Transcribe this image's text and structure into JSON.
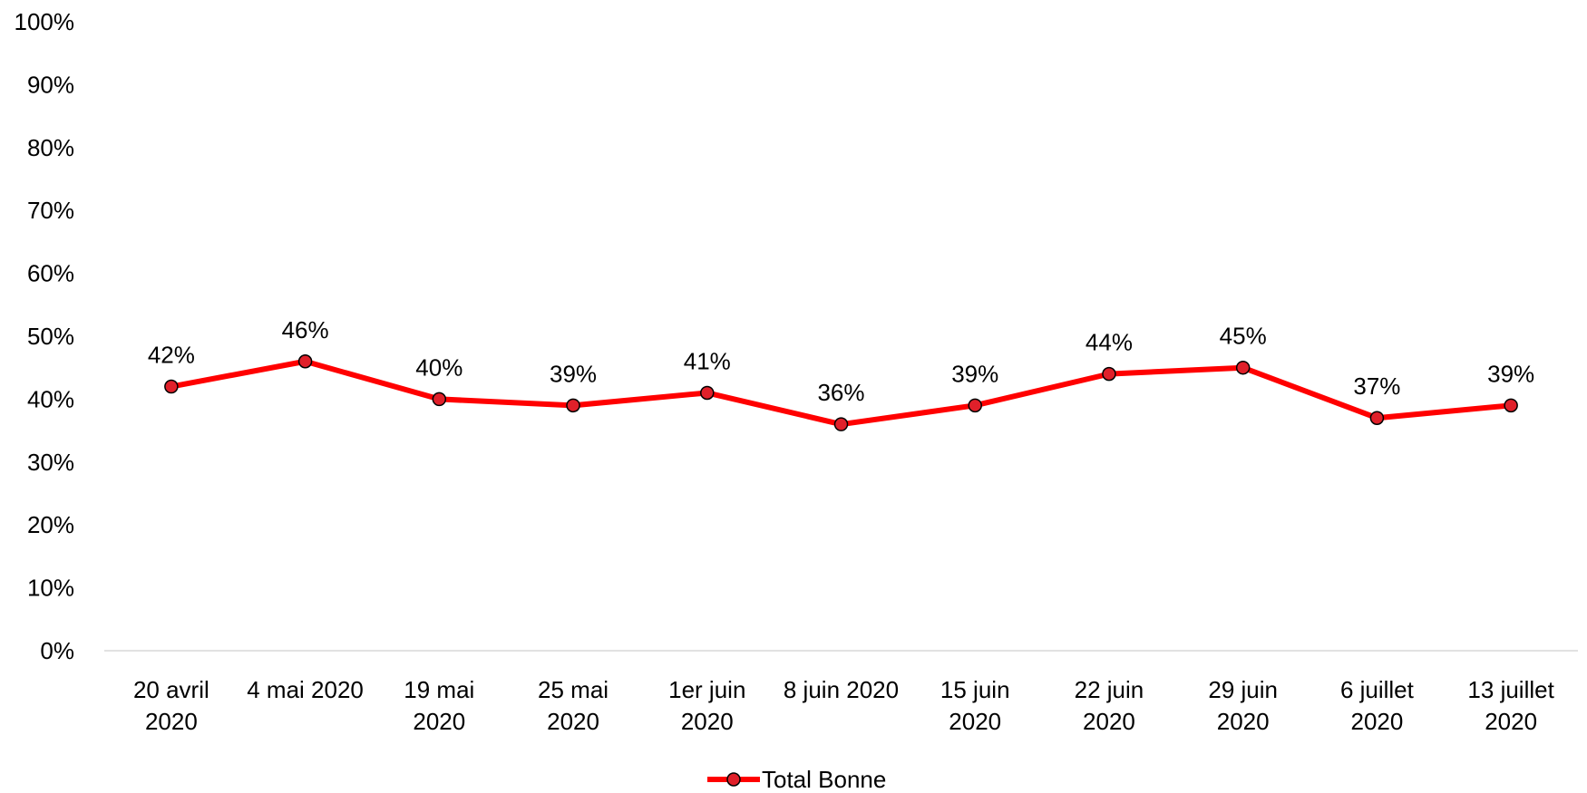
{
  "chart_data": {
    "type": "line",
    "categories": [
      [
        "20 avril",
        "2020"
      ],
      [
        "4 mai 2020"
      ],
      [
        "19 mai",
        "2020"
      ],
      [
        "25 mai",
        "2020"
      ],
      [
        "1er juin",
        "2020"
      ],
      [
        "8 juin 2020"
      ],
      [
        "15 juin",
        "2020"
      ],
      [
        "22 juin",
        "2020"
      ],
      [
        "29 juin",
        "2020"
      ],
      [
        "6 juillet",
        "2020"
      ],
      [
        "13 juillet",
        "2020"
      ]
    ],
    "series": [
      {
        "name": "Total Bonne",
        "values": [
          42,
          46,
          40,
          39,
          41,
          36,
          39,
          44,
          45,
          37,
          39
        ],
        "color": "#ff0000",
        "marker_color": "#e0202a"
      }
    ],
    "data_labels": [
      "42%",
      "46%",
      "40%",
      "39%",
      "41%",
      "36%",
      "39%",
      "44%",
      "45%",
      "37%",
      "39%"
    ],
    "y_ticks": [
      "0%",
      "10%",
      "20%",
      "30%",
      "40%",
      "50%",
      "60%",
      "70%",
      "80%",
      "90%",
      "100%"
    ],
    "ylim": [
      0,
      100
    ],
    "grid": false,
    "legend_position": "bottom"
  }
}
